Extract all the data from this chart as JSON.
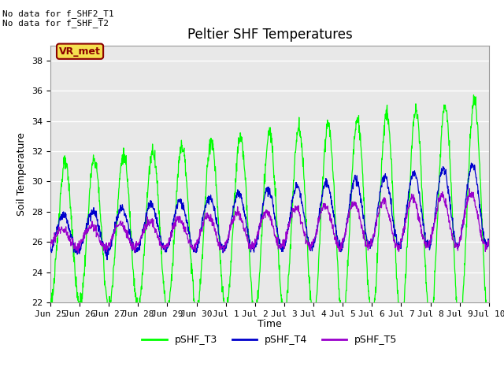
{
  "title": "Peltier SHF Temperatures",
  "ylabel": "Soil Temperature",
  "xlabel": "Time",
  "ylim": [
    22,
    39
  ],
  "yticks": [
    22,
    24,
    26,
    28,
    30,
    32,
    34,
    36,
    38
  ],
  "no_data_text": [
    "No data for f_SHF2_T1",
    "No data for f_SHF_T2"
  ],
  "vr_met_label": "VR_met",
  "legend_entries": [
    "pSHF_T3",
    "pSHF_T4",
    "pSHF_T5"
  ],
  "line_colors": [
    "#00ff00",
    "#0000cc",
    "#9900cc"
  ],
  "fig_bg_color": "#ffffff",
  "plot_bg_color": "#e8e8e8",
  "xtick_labels": [
    "Jun 25",
    "Jun 26",
    "Jun 27",
    "Jun 28",
    "Jun 29",
    "Jun 30",
    "Jul 1",
    "Jul 2",
    "Jul 3",
    "Jul 4",
    "Jul 5",
    "Jul 6",
    "Jul 7",
    "Jul 8",
    "Jul 9",
    "Jul 10"
  ],
  "n_points": 1500,
  "title_fontsize": 12,
  "axis_fontsize": 9,
  "tick_fontsize": 8
}
